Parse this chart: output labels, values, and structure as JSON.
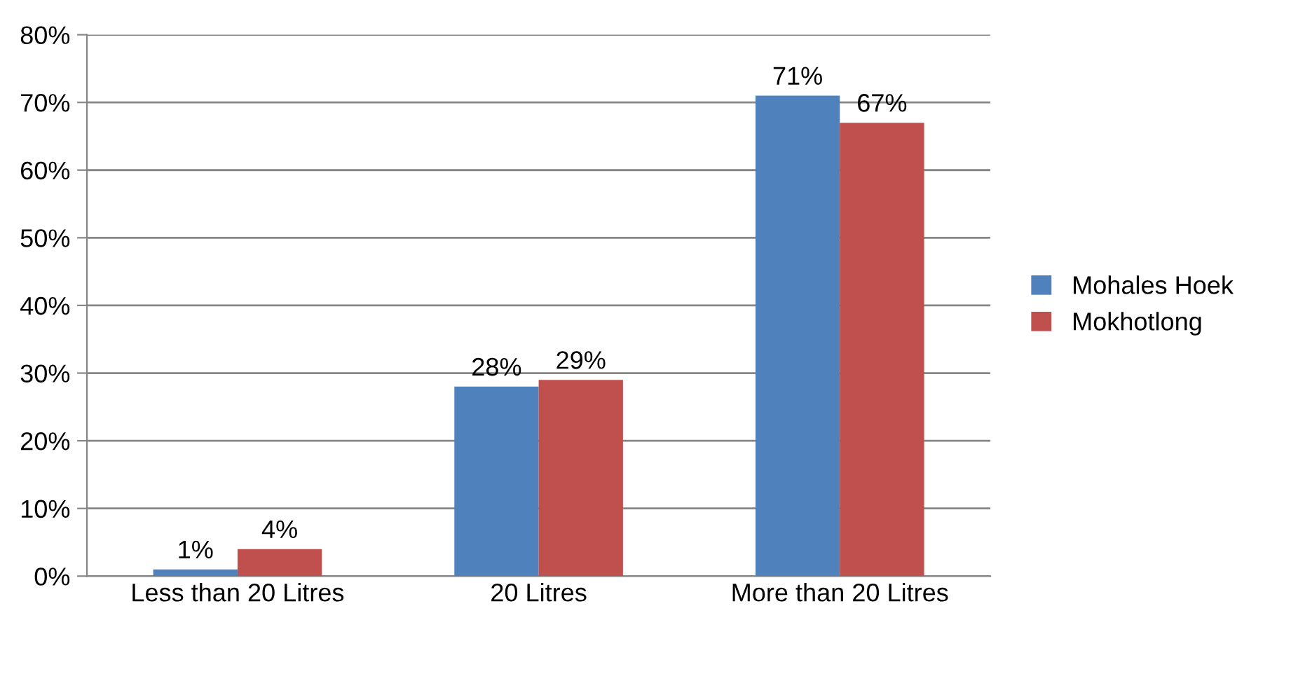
{
  "chart_data": {
    "type": "bar",
    "categories": [
      "Less than 20 Litres",
      "20 Litres",
      "More than 20 Litres"
    ],
    "series": [
      {
        "name": "Mohales Hoek",
        "color": "#4f81bd",
        "values": [
          1,
          28,
          71
        ],
        "value_labels": [
          "1%",
          "28%",
          "71%"
        ]
      },
      {
        "name": "Mokhotlong",
        "color": "#c0504d",
        "values": [
          4,
          29,
          67
        ],
        "value_labels": [
          "4%",
          "29%",
          "67%"
        ]
      }
    ],
    "ylim": [
      0,
      80
    ],
    "yticks": [
      {
        "value": 0,
        "label": "0%"
      },
      {
        "value": 10,
        "label": "10%"
      },
      {
        "value": 20,
        "label": "20%"
      },
      {
        "value": 30,
        "label": "30%"
      },
      {
        "value": 40,
        "label": "40%"
      },
      {
        "value": 50,
        "label": "50%"
      },
      {
        "value": 60,
        "label": "60%"
      },
      {
        "value": 70,
        "label": "70%"
      },
      {
        "value": 80,
        "label": "80%"
      }
    ],
    "grid": "y",
    "legend": "right"
  }
}
